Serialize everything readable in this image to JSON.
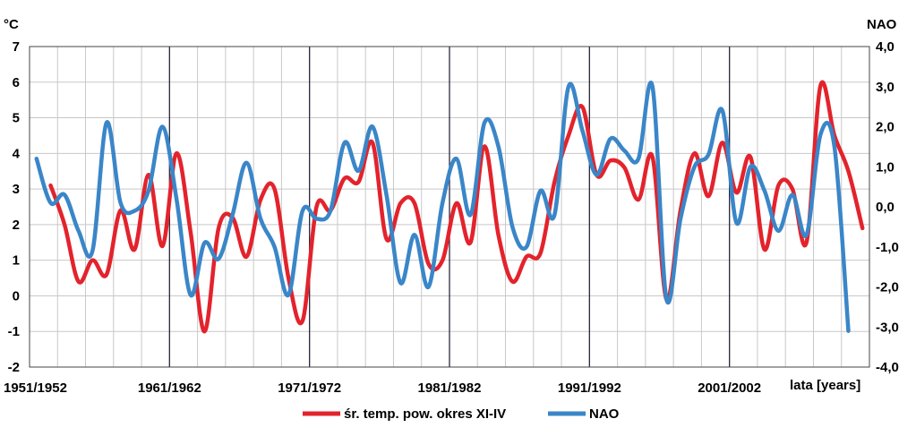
{
  "chart_data": {
    "type": "line",
    "y_left_unit": "°C",
    "y_right_unit": "NAO",
    "x_label": "lata  [years]",
    "x_ticks": [
      "1951/1952",
      "1961/1962",
      "1971/1972",
      "1981/1982",
      "1991/1992",
      "2001/2002"
    ],
    "y_left_ticks": [
      "-2",
      "-1",
      "0",
      "1",
      "2",
      "3",
      "4",
      "5",
      "6",
      "7"
    ],
    "y_right_ticks": [
      "-4,0",
      "-3,0",
      "-2,0",
      "-1,0",
      "0,0",
      "1,0",
      "2,0",
      "3,0",
      "4,0"
    ],
    "ylim_left": [
      -2,
      7
    ],
    "ylim_right": [
      -4,
      4
    ],
    "grid": true,
    "legend_position": "bottom",
    "series": [
      {
        "name": "śr. temp. pow. okres XI-IV",
        "axis": "left",
        "color": "#e3232c",
        "x": [
          1952,
          1953,
          1954,
          1955,
          1956,
          1957,
          1958,
          1959,
          1960,
          1961,
          1962,
          1963,
          1964,
          1965,
          1966,
          1967,
          1968,
          1969,
          1970,
          1971,
          1972,
          1973,
          1974,
          1975,
          1976,
          1977,
          1978,
          1979,
          1980,
          1981,
          1982,
          1983,
          1984,
          1985,
          1986,
          1987,
          1988,
          1989,
          1990,
          1991,
          1992,
          1993,
          1994,
          1995,
          1996,
          1997,
          1998,
          1999,
          2000,
          2001,
          2002,
          2003,
          2004,
          2005,
          2006,
          2007,
          2008,
          2009,
          2010
        ],
        "values": [
          3.1,
          2.0,
          0.4,
          1.0,
          0.6,
          2.4,
          1.3,
          3.4,
          1.4,
          4.0,
          1.8,
          -1.0,
          1.9,
          2.2,
          1.1,
          2.7,
          3.0,
          0.5,
          -0.7,
          2.5,
          2.4,
          3.3,
          3.2,
          4.3,
          1.6,
          2.6,
          2.6,
          0.9,
          1.0,
          2.6,
          1.5,
          4.2,
          1.7,
          0.4,
          1.1,
          1.2,
          3.2,
          4.5,
          5.3,
          3.4,
          3.8,
          3.6,
          2.7,
          3.9,
          -0.1,
          2.4,
          4.0,
          2.8,
          4.3,
          2.9,
          3.9,
          1.3,
          3.1,
          3.0,
          1.5,
          5.9,
          4.5,
          3.5,
          1.9
        ]
      },
      {
        "name": "NAO",
        "axis": "right",
        "color": "#3a86c8",
        "x": [
          1951,
          1952,
          1953,
          1954,
          1955,
          1956,
          1957,
          1958,
          1959,
          1960,
          1961,
          1962,
          1963,
          1964,
          1965,
          1966,
          1967,
          1968,
          1969,
          1970,
          1971,
          1972,
          1973,
          1974,
          1975,
          1976,
          1977,
          1978,
          1979,
          1980,
          1981,
          1982,
          1983,
          1984,
          1985,
          1986,
          1987,
          1988,
          1989,
          1990,
          1991,
          1992,
          1993,
          1994,
          1995,
          1996,
          1997,
          1998,
          1999,
          2000,
          2001,
          2002,
          2003,
          2004,
          2005,
          2006,
          2007,
          2008,
          2009
        ],
        "values": [
          1.2,
          0.1,
          0.3,
          -0.6,
          -1.1,
          2.1,
          0.1,
          -0.1,
          0.4,
          2.0,
          0.2,
          -2.2,
          -0.9,
          -1.3,
          -0.2,
          1.1,
          -0.3,
          -1.0,
          -2.2,
          -0.1,
          -0.3,
          -0.1,
          1.6,
          0.9,
          2.0,
          0.3,
          -1.9,
          -0.7,
          -2.0,
          0.1,
          1.2,
          -0.2,
          2.1,
          1.5,
          -0.5,
          -1.0,
          0.4,
          -0.2,
          3.0,
          1.9,
          0.8,
          1.7,
          1.4,
          1.2,
          3.0,
          -2.3,
          -0.3,
          1.0,
          1.3,
          2.4,
          -0.4,
          1.0,
          0.4,
          -0.6,
          0.3,
          -0.7,
          1.8,
          1.5,
          -3.1
        ]
      }
    ]
  }
}
